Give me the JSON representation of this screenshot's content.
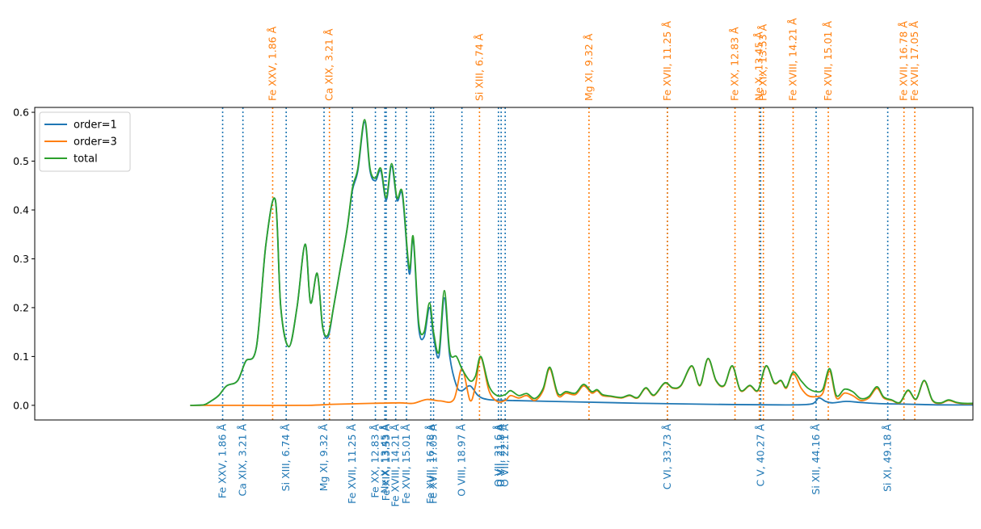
{
  "chart_data": {
    "type": "line",
    "title": "",
    "xlabel": "",
    "ylabel": "",
    "xlim": [
      0,
      69.4
    ],
    "ylim": [
      -0.03,
      0.61
    ],
    "y_ticks": [
      0.0,
      0.1,
      0.2,
      0.3,
      0.4,
      0.5,
      0.6
    ],
    "y_tick_labels": [
      "0.0",
      "0.1",
      "0.2",
      "0.3",
      "0.4",
      "0.5",
      "0.6"
    ],
    "x_ticks_visible": false,
    "grid": false,
    "legend_position": "top-left",
    "colors": {
      "order1": "#1f77b4",
      "order3": "#ff7f0e",
      "total": "#2ca02c",
      "axis": "#000000"
    },
    "series": [
      {
        "name": "order=1",
        "color": "#1f77b4",
        "x": [
          11.5,
          12.5,
          13.0,
          13.6,
          14.2,
          15.0,
          15.6,
          16.4,
          17.1,
          17.8,
          18.2,
          18.8,
          19.4,
          20.0,
          20.4,
          20.9,
          21.3,
          21.7,
          22.1,
          22.6,
          23.1,
          23.5,
          23.9,
          24.4,
          24.8,
          25.2,
          25.6,
          26.0,
          26.4,
          26.8,
          27.2,
          27.7,
          28.0,
          28.4,
          28.8,
          29.2,
          29.5,
          29.9,
          30.3,
          30.7,
          31.2,
          31.6,
          32.2,
          32.8,
          33.5,
          35.0,
          40.0,
          45.0,
          50.0,
          55.0,
          56.0,
          57.5,
          58.0,
          58.5,
          59.0,
          60.0,
          61.0,
          62.0,
          63.0,
          65.0,
          67.0,
          69.4
        ],
        "y": [
          0.0,
          0.001,
          0.008,
          0.02,
          0.04,
          0.05,
          0.09,
          0.12,
          0.33,
          0.42,
          0.2,
          0.12,
          0.2,
          0.33,
          0.21,
          0.27,
          0.16,
          0.14,
          0.2,
          0.28,
          0.36,
          0.44,
          0.48,
          0.58,
          0.48,
          0.46,
          0.48,
          0.42,
          0.49,
          0.42,
          0.43,
          0.27,
          0.34,
          0.16,
          0.14,
          0.2,
          0.14,
          0.1,
          0.22,
          0.1,
          0.04,
          0.03,
          0.04,
          0.02,
          0.012,
          0.01,
          0.007,
          0.004,
          0.002,
          0.001,
          0.001,
          0.003,
          0.015,
          0.008,
          0.005,
          0.008,
          0.006,
          0.004,
          0.003,
          0.002,
          0.001,
          0.001
        ]
      },
      {
        "name": "order=3",
        "color": "#ff7f0e",
        "x": [
          11.5,
          15.0,
          20.0,
          22.0,
          25.0,
          27.0,
          28.0,
          29.0,
          30.0,
          31.0,
          31.6,
          32.2,
          32.6,
          33.0,
          33.6,
          34.2,
          34.8,
          35.2,
          35.8,
          36.4,
          37.0,
          37.6,
          38.1,
          38.7,
          39.3,
          40.0,
          40.6,
          41.2,
          41.6,
          42.0,
          42.6,
          43.4,
          44.0,
          44.6,
          45.2,
          45.8,
          46.6,
          47.2,
          47.8,
          48.6,
          49.2,
          49.8,
          50.4,
          51.0,
          51.6,
          52.2,
          52.9,
          53.5,
          54.1,
          54.7,
          55.2,
          55.6,
          56.1,
          56.7,
          57.2,
          57.8,
          58.3,
          58.8,
          59.3,
          59.9,
          60.5,
          61.1,
          61.7,
          62.3,
          62.8,
          63.4,
          64.0,
          64.6,
          65.2,
          65.8,
          66.4,
          67.0,
          67.6,
          68.2,
          68.8,
          69.4
        ],
        "y": [
          0.0,
          0.0,
          0.0,
          0.002,
          0.004,
          0.005,
          0.004,
          0.012,
          0.009,
          0.012,
          0.075,
          0.01,
          0.04,
          0.098,
          0.03,
          0.008,
          0.01,
          0.02,
          0.015,
          0.02,
          0.01,
          0.03,
          0.075,
          0.02,
          0.025,
          0.022,
          0.04,
          0.025,
          0.03,
          0.02,
          0.018,
          0.015,
          0.02,
          0.015,
          0.035,
          0.02,
          0.045,
          0.035,
          0.04,
          0.08,
          0.04,
          0.095,
          0.05,
          0.04,
          0.08,
          0.03,
          0.04,
          0.03,
          0.08,
          0.045,
          0.05,
          0.035,
          0.065,
          0.035,
          0.02,
          0.018,
          0.025,
          0.07,
          0.015,
          0.025,
          0.02,
          0.01,
          0.015,
          0.035,
          0.015,
          0.01,
          0.005,
          0.03,
          0.012,
          0.05,
          0.01,
          0.004,
          0.01,
          0.005,
          0.003,
          0.003
        ]
      },
      {
        "name": "total",
        "color": "#2ca02c",
        "x": [
          11.5,
          12.5,
          13.0,
          13.6,
          14.2,
          15.0,
          15.6,
          16.4,
          17.1,
          17.8,
          18.2,
          18.8,
          19.4,
          20.0,
          20.4,
          20.9,
          21.3,
          21.7,
          22.1,
          22.6,
          23.1,
          23.5,
          23.9,
          24.4,
          24.8,
          25.2,
          25.6,
          26.0,
          26.4,
          26.8,
          27.2,
          27.7,
          28.0,
          28.4,
          28.8,
          29.2,
          29.5,
          29.9,
          30.3,
          30.7,
          31.2,
          31.6,
          32.2,
          32.6,
          33.0,
          33.6,
          34.2,
          34.8,
          35.2,
          35.8,
          36.4,
          37.0,
          37.6,
          38.1,
          38.7,
          39.3,
          40.0,
          40.6,
          41.2,
          41.6,
          42.0,
          42.6,
          43.4,
          44.0,
          44.6,
          45.2,
          45.8,
          46.6,
          47.2,
          47.8,
          48.6,
          49.2,
          49.8,
          50.4,
          51.0,
          51.6,
          52.2,
          52.9,
          53.5,
          54.1,
          54.7,
          55.2,
          55.6,
          56.1,
          56.7,
          57.2,
          57.8,
          58.3,
          58.8,
          59.3,
          59.9,
          60.5,
          61.1,
          61.7,
          62.3,
          62.8,
          63.4,
          64.0,
          64.6,
          65.2,
          65.8,
          66.4,
          67.0,
          67.6,
          68.2,
          68.8,
          69.4
        ],
        "y": [
          0.0,
          0.001,
          0.008,
          0.02,
          0.04,
          0.05,
          0.09,
          0.12,
          0.33,
          0.42,
          0.2,
          0.12,
          0.2,
          0.33,
          0.21,
          0.27,
          0.16,
          0.145,
          0.2,
          0.28,
          0.36,
          0.445,
          0.485,
          0.585,
          0.485,
          0.465,
          0.485,
          0.425,
          0.495,
          0.425,
          0.435,
          0.28,
          0.345,
          0.17,
          0.15,
          0.21,
          0.15,
          0.11,
          0.235,
          0.11,
          0.1,
          0.075,
          0.05,
          0.06,
          0.1,
          0.04,
          0.02,
          0.022,
          0.03,
          0.02,
          0.024,
          0.014,
          0.034,
          0.078,
          0.024,
          0.028,
          0.025,
          0.043,
          0.028,
          0.032,
          0.022,
          0.019,
          0.016,
          0.021,
          0.016,
          0.036,
          0.021,
          0.046,
          0.036,
          0.041,
          0.081,
          0.041,
          0.096,
          0.051,
          0.041,
          0.081,
          0.031,
          0.041,
          0.031,
          0.081,
          0.046,
          0.051,
          0.037,
          0.068,
          0.05,
          0.035,
          0.028,
          0.033,
          0.075,
          0.02,
          0.033,
          0.028,
          0.014,
          0.018,
          0.038,
          0.017,
          0.011,
          0.006,
          0.031,
          0.013,
          0.051,
          0.011,
          0.005,
          0.011,
          0.006,
          0.004,
          0.004
        ]
      }
    ],
    "lines_order1": [
      {
        "x": 13.9,
        "label": "Fe XXV, 1.86 Å"
      },
      {
        "x": 15.4,
        "label": "Ca XIX, 3.21 Å"
      },
      {
        "x": 18.6,
        "label": "Si XIII, 6.74 Å"
      },
      {
        "x": 21.4,
        "label": "Mg XI, 9.32 Å"
      },
      {
        "x": 23.5,
        "label": "Fe XVII, 11.25 Å"
      },
      {
        "x": 25.2,
        "label": "Fe XX, 12.83 Å"
      },
      {
        "x": 25.9,
        "label": "Ne X, 13.45 Å"
      },
      {
        "x": 26.0,
        "label": "Fe XIX, 13.53 Å"
      },
      {
        "x": 26.7,
        "label": "Fe XVIII, 14.21 Å"
      },
      {
        "x": 27.5,
        "label": "Fe XVII, 15.01 Å"
      },
      {
        "x": 29.3,
        "label": "Fe XVII, 16.78 Å"
      },
      {
        "x": 29.5,
        "label": "Fe XVII, 17.05 Å"
      },
      {
        "x": 31.6,
        "label": "O VIII, 18.97 Å"
      },
      {
        "x": 34.3,
        "label": "O VII, 21.6 Å"
      },
      {
        "x": 34.5,
        "label": "O VII, 21.8 Å"
      },
      {
        "x": 34.8,
        "label": "O VII, 22.1 Å"
      },
      {
        "x": 46.8,
        "label": "C VI, 33.73 Å"
      },
      {
        "x": 53.7,
        "label": "C V, 40.27 Å"
      },
      {
        "x": 57.8,
        "label": "Si XII, 44.16 Å"
      },
      {
        "x": 63.1,
        "label": "Si XI, 49.18 Å"
      }
    ],
    "lines_order3": [
      {
        "x": 17.6,
        "label": "Fe XXV, 1.86 Å"
      },
      {
        "x": 21.8,
        "label": "Ca XIX, 3.21 Å"
      },
      {
        "x": 32.9,
        "label": "Si XIII, 6.74 Å"
      },
      {
        "x": 41.0,
        "label": "Mg XI, 9.32 Å"
      },
      {
        "x": 46.8,
        "label": "Fe XVII, 11.25 Å"
      },
      {
        "x": 51.8,
        "label": "Fe XX, 12.83 Å"
      },
      {
        "x": 53.6,
        "label": "Ne X, 13.45 Å"
      },
      {
        "x": 53.9,
        "label": "Fe XIX, 13.53 Å"
      },
      {
        "x": 56.1,
        "label": "Fe XVIII, 14.21 Å"
      },
      {
        "x": 58.7,
        "label": "Fe XVII, 15.01 Å"
      },
      {
        "x": 64.3,
        "label": "Fe XVII, 16.78 Å"
      },
      {
        "x": 65.1,
        "label": "Fe XVII, 17.05 Å"
      }
    ]
  }
}
